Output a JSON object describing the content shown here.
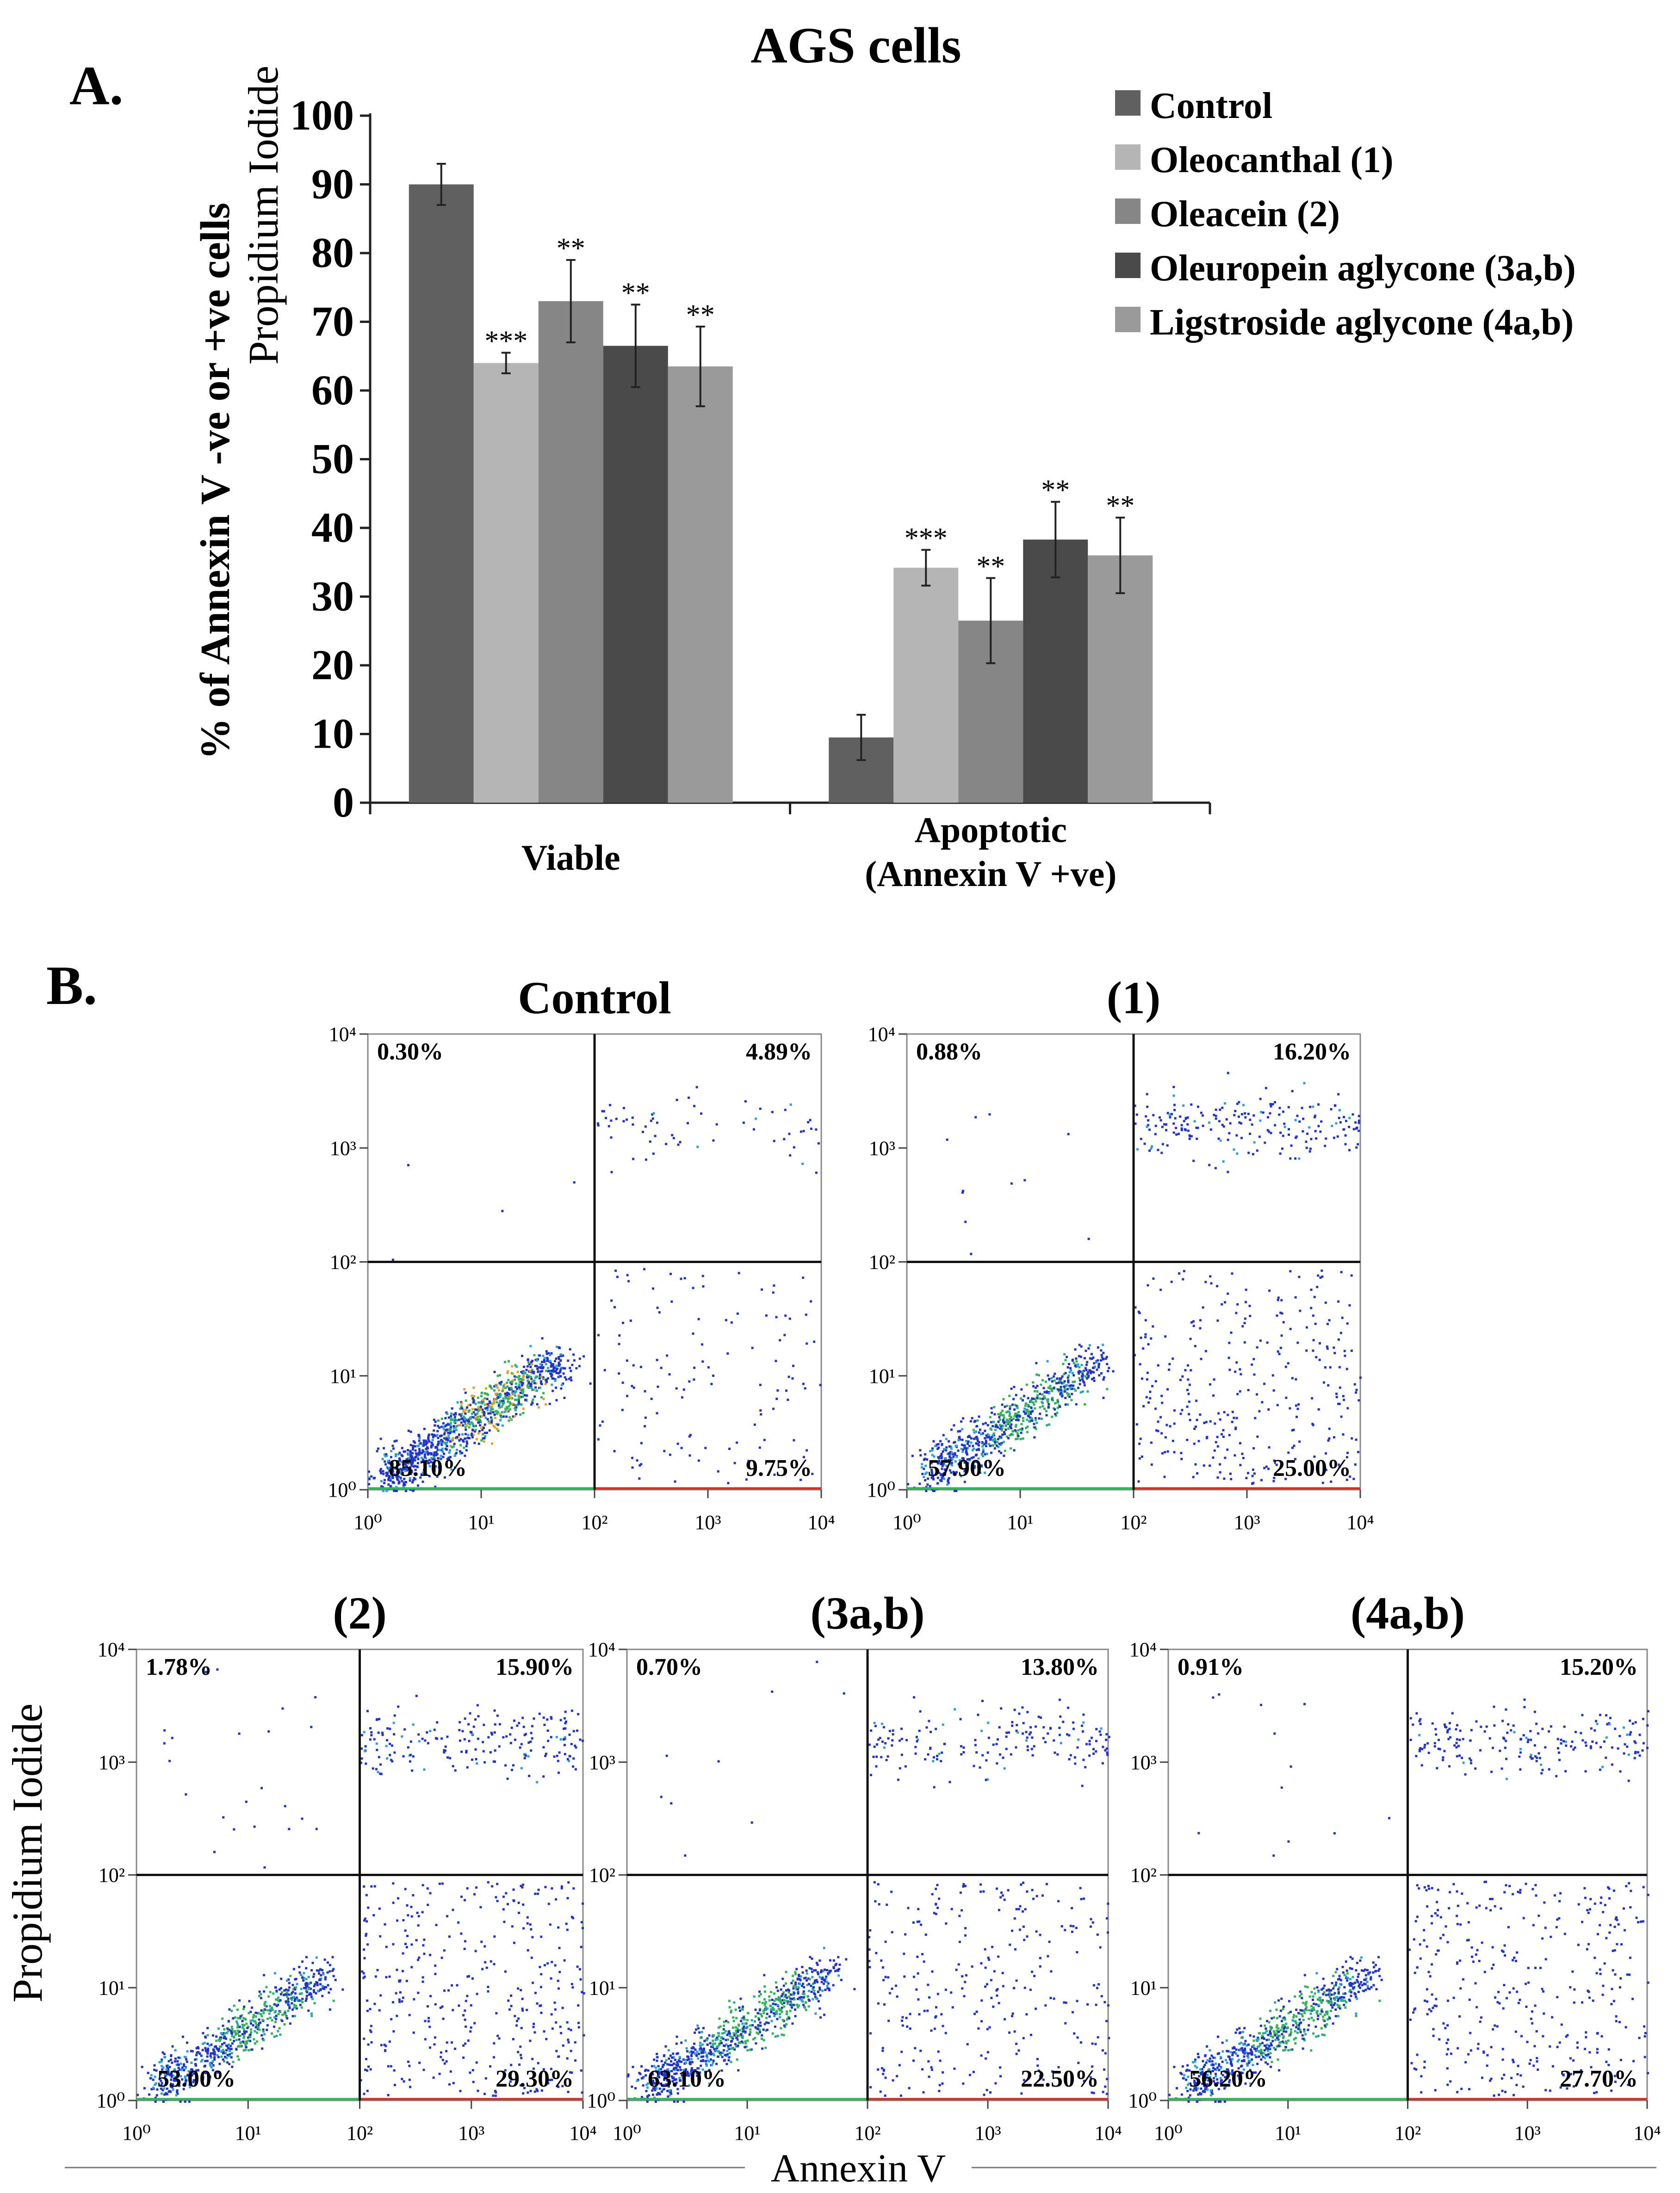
{
  "chart_data": [
    {
      "type": "bar",
      "panel_label": "A.",
      "title": "AGS cells",
      "ylabel": "% of Annexin V -ve or  +ve cells",
      "xlabel": "",
      "ylim": [
        0,
        100
      ],
      "yticks": [
        0,
        10,
        20,
        30,
        40,
        50,
        60,
        70,
        80,
        90,
        100
      ],
      "categories": [
        {
          "lines": [
            "Viable"
          ]
        },
        {
          "lines": [
            "Apoptotic",
            "(Annexin V +ve)"
          ]
        }
      ],
      "legend_position": "top-right",
      "grid": false,
      "series": [
        {
          "name": "Control",
          "color": "#606060",
          "values": [
            90,
            9.5
          ],
          "errors": [
            3,
            3.3
          ],
          "significance": [
            "",
            ""
          ]
        },
        {
          "name": "Oleocanthal (1)",
          "color": "#b5b5b5",
          "values": [
            64,
            34.2
          ],
          "errors": [
            1.5,
            2.6
          ],
          "significance": [
            "***",
            "***"
          ]
        },
        {
          "name": "Oleacein (2)",
          "color": "#868686",
          "values": [
            73,
            26.5
          ],
          "errors": [
            6,
            6.2
          ],
          "significance": [
            "**",
            "**"
          ]
        },
        {
          "name": "Oleuropein aglycone (3a,b)",
          "color": "#4a4a4a",
          "values": [
            66.5,
            38.3
          ],
          "errors": [
            6,
            5.5
          ],
          "significance": [
            "**",
            "**"
          ]
        },
        {
          "name": "Ligstroside aglycone (4a,b)",
          "color": "#9a9a9a",
          "values": [
            63.5,
            36
          ],
          "errors": [
            5.8,
            5.5
          ],
          "significance": [
            "**",
            "**"
          ]
        }
      ]
    },
    {
      "type": "scatter",
      "panel_label": "B.",
      "xlabel": "Annexin V",
      "ylabel": "Propidium Iodide",
      "x_scale": "log",
      "y_scale": "log",
      "xlim": [
        1,
        10000
      ],
      "ylim": [
        1,
        10000
      ],
      "quadrant_gate": [
        100,
        100
      ],
      "plots": [
        {
          "title": "Control",
          "quadrants": {
            "upper_left": "0.30%",
            "upper_right": "4.89%",
            "lower_left": "85.10%",
            "lower_right": "9.75%"
          }
        },
        {
          "title": "(1)",
          "quadrants": {
            "upper_left": "0.88%",
            "upper_right": "16.20%",
            "lower_left": "57.90%",
            "lower_right": "25.00%"
          }
        },
        {
          "title": "(2)",
          "quadrants": {
            "upper_left": "1.78%",
            "upper_right": "15.90%",
            "lower_left": "53.00%",
            "lower_right": "29.30%"
          }
        },
        {
          "title": "(3a,b)",
          "quadrants": {
            "upper_left": "0.70%",
            "upper_right": "13.80%",
            "lower_left": "63.10%",
            "lower_right": "22.50%"
          }
        },
        {
          "title": "(4a,b)",
          "quadrants": {
            "upper_left": "0.91%",
            "upper_right": "15.20%",
            "lower_left": "56.20%",
            "lower_right": "27.70%"
          }
        }
      ]
    }
  ]
}
